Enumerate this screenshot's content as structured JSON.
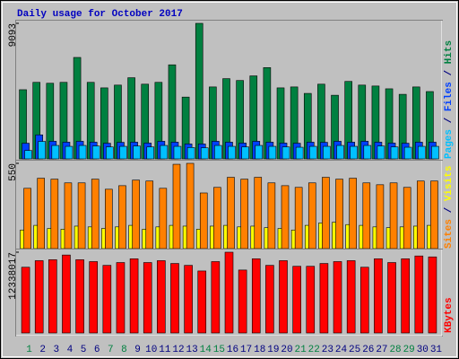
{
  "chart_data": [
    {
      "type": "bar",
      "title": "Daily usage for October 2017",
      "title_color": "#0000c0",
      "ylim": [
        0,
        9093
      ],
      "yticks": [
        9093
      ],
      "legend_separator": " / ",
      "series": [
        {
          "name": "Hits",
          "color": "#008040",
          "values": [
            4640,
            5134,
            5073,
            5134,
            6805,
            5134,
            4763,
            4949,
            5444,
            5011,
            5134,
            6310,
            4145,
            9093,
            4825,
            5382,
            5258,
            5567,
            6124,
            4763,
            4825,
            4392,
            5011,
            4268,
            5196,
            4949,
            4887,
            4701,
            4330,
            4825,
            4516
          ]
        },
        {
          "name": "Files",
          "color": "#0040ff",
          "values": [
            1050,
            1610,
            1180,
            1120,
            1180,
            1120,
            1050,
            1110,
            1120,
            1060,
            1180,
            1120,
            1000,
            1000,
            1180,
            1120,
            1060,
            1180,
            1120,
            1060,
            1050,
            1120,
            1110,
            1180,
            1120,
            1180,
            1120,
            1060,
            1050,
            1120,
            1120
          ]
        },
        {
          "name": "Pages",
          "color": "#00c0ff",
          "values": [
            560,
            1170,
            900,
            840,
            900,
            860,
            800,
            840,
            860,
            800,
            900,
            840,
            760,
            740,
            900,
            840,
            800,
            900,
            840,
            800,
            780,
            840,
            840,
            900,
            840,
            900,
            860,
            800,
            780,
            840,
            840
          ]
        }
      ]
    },
    {
      "type": "bar",
      "ylim": [
        0,
        550
      ],
      "yticks": [
        550
      ],
      "legend_separator": " / ",
      "series": [
        {
          "name": "Visits",
          "color": "#ffff00",
          "values": [
            120,
            150,
            130,
            125,
            145,
            140,
            130,
            140,
            150,
            125,
            140,
            150,
            145,
            125,
            145,
            150,
            140,
            145,
            135,
            130,
            120,
            150,
            165,
            170,
            155,
            150,
            140,
            135,
            140,
            145,
            150
          ]
        },
        {
          "name": "Sites",
          "color": "#ff8000",
          "values": [
            389,
            454,
            448,
            424,
            424,
            448,
            383,
            406,
            442,
            436,
            389,
            544,
            550,
            359,
            395,
            460,
            448,
            460,
            424,
            406,
            395,
            424,
            460,
            448,
            454,
            424,
            412,
            424,
            395,
            436,
            436
          ]
        }
      ]
    },
    {
      "type": "bar",
      "ylim": [
        0,
        12338017
      ],
      "yticks": [
        12338017
      ],
      "categories": [
        "1",
        "2",
        "3",
        "4",
        "5",
        "6",
        "7",
        "8",
        "9",
        "10",
        "11",
        "12",
        "13",
        "14",
        "15",
        "16",
        "17",
        "18",
        "19",
        "20",
        "21",
        "22",
        "23",
        "24",
        "25",
        "26",
        "27",
        "28",
        "29",
        "30",
        "31"
      ],
      "category_colors": [
        "#008040",
        "#000080",
        "#000080",
        "#000080",
        "#000080",
        "#000080",
        "#008040",
        "#008040",
        "#000080",
        "#000080",
        "#000080",
        "#000080",
        "#000080",
        "#008040",
        "#008040",
        "#000080",
        "#000080",
        "#000080",
        "#000080",
        "#000080",
        "#008040",
        "#008040",
        "#000080",
        "#000080",
        "#000080",
        "#000080",
        "#000080",
        "#008040",
        "#008040",
        "#000080",
        "#000080"
      ],
      "series": [
        {
          "name": "KBytes",
          "color": "#ff0000",
          "values": [
            10042550,
            11046805,
            11190270,
            11907595,
            11190270,
            10903340,
            10329480,
            10759875,
            11333735,
            10759875,
            11046805,
            10616410,
            10329480,
            9468690,
            10903340,
            12338017,
            9612155,
            11333735,
            10329480,
            11046805,
            10186015,
            10186015,
            10616410,
            10903340,
            11046805,
            10042550,
            11333735,
            10759875,
            11333735,
            11764130,
            11620665
          ]
        }
      ]
    }
  ]
}
